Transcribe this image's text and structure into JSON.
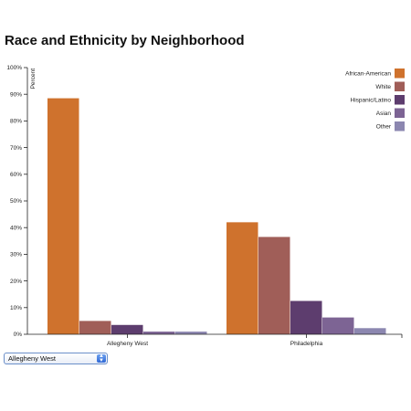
{
  "chart_data": {
    "type": "bar",
    "title": "Race and Ethnicity by Neighborhood",
    "ylabel": "Percent",
    "xlabel": "",
    "ylim": [
      0,
      100
    ],
    "yticks": [
      "0%",
      "10%",
      "20%",
      "30%",
      "40%",
      "50%",
      "60%",
      "70%",
      "80%",
      "90%",
      "100%"
    ],
    "categories": [
      "Allegheny West",
      "Philadelphia"
    ],
    "series": [
      {
        "name": "African-American",
        "color": "#cf722d",
        "values": [
          88.5,
          42
        ]
      },
      {
        "name": "White",
        "color": "#a05e58",
        "values": [
          5,
          36.5
        ]
      },
      {
        "name": "Hispanic/Latino",
        "color": "#5d3d6e",
        "values": [
          3.5,
          12.5
        ]
      },
      {
        "name": "Asian",
        "color": "#7d6494",
        "values": [
          1,
          6.3
        ]
      },
      {
        "name": "Other",
        "color": "#8c87b0",
        "values": [
          1,
          2.3
        ]
      }
    ],
    "legend_position": "top-right",
    "grid": false
  },
  "controls": {
    "neighborhood_select": {
      "selected": "Allegheny West",
      "arrow_icon": "up-down-arrows-icon"
    }
  }
}
